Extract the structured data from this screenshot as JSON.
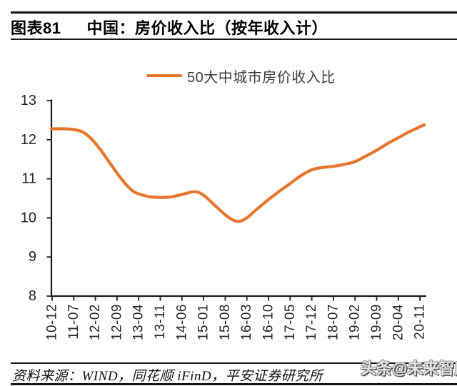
{
  "figure": {
    "id_label": "图表81",
    "title": "中国：房价收入比（按年收入计）"
  },
  "legend": {
    "series_label": "50大中城市房价收入比"
  },
  "chart_data": {
    "type": "line",
    "title": "中国：房价收入比（按年收入计）",
    "legend_position": "top-center",
    "grid": false,
    "ylim": [
      8,
      13
    ],
    "y_ticks": [
      13,
      12,
      11,
      10,
      9,
      8
    ],
    "x_labels": [
      "10-12",
      "11-07",
      "12-02",
      "12-09",
      "13-04",
      "13-11",
      "14-06",
      "15-01",
      "15-08",
      "16-03",
      "16-10",
      "17-05",
      "17-12",
      "18-07",
      "19-02",
      "19-09",
      "20-04",
      "20-11"
    ],
    "series": [
      {
        "name": "50大中城市房价收入比",
        "color": "#E8762D",
        "values": [
          12.28,
          12.26,
          11.9,
          11.15,
          10.63,
          10.53,
          10.6,
          10.58,
          10.08,
          10.0,
          10.47,
          10.88,
          11.23,
          11.32,
          11.44,
          11.73,
          12.05,
          12.33
        ]
      }
    ],
    "annotations": {
      "minimum": {
        "approx_date": "15-12",
        "value": 9.9
      },
      "start_value": 12.28,
      "end_value": 12.38
    },
    "shape_points": [
      [
        -0.03,
        12.28
      ],
      [
        0.5,
        12.28
      ],
      [
        1.0,
        12.26
      ],
      [
        1.4,
        12.2
      ],
      [
        1.8,
        12.03
      ],
      [
        2.2,
        11.77
      ],
      [
        2.7,
        11.38
      ],
      [
        3.2,
        11.0
      ],
      [
        3.7,
        10.7
      ],
      [
        4.2,
        10.58
      ],
      [
        4.7,
        10.53
      ],
      [
        5.4,
        10.53
      ],
      [
        6.0,
        10.6
      ],
      [
        6.6,
        10.67
      ],
      [
        7.0,
        10.58
      ],
      [
        7.5,
        10.33
      ],
      [
        8.0,
        10.08
      ],
      [
        8.35,
        9.95
      ],
      [
        8.65,
        9.91
      ],
      [
        9.0,
        10.0
      ],
      [
        9.5,
        10.24
      ],
      [
        10.0,
        10.47
      ],
      [
        10.5,
        10.68
      ],
      [
        11.0,
        10.88
      ],
      [
        11.5,
        11.08
      ],
      [
        12.0,
        11.23
      ],
      [
        12.5,
        11.29
      ],
      [
        13.0,
        11.32
      ],
      [
        13.6,
        11.38
      ],
      [
        14.0,
        11.44
      ],
      [
        14.5,
        11.58
      ],
      [
        15.0,
        11.73
      ],
      [
        15.5,
        11.9
      ],
      [
        16.0,
        12.05
      ],
      [
        16.5,
        12.2
      ],
      [
        17.0,
        12.33
      ],
      [
        17.2,
        12.38
      ]
    ]
  },
  "footer": {
    "source": "资料来源：WIND，同花顺 iFinD，平安证券研究所"
  },
  "watermark": "头条@未来智库",
  "colors": {
    "line": "#E8762D",
    "axis": "#1a1a1a",
    "axis_text": "#262626",
    "title_text": "#000000",
    "watermark_text": "#e3e3e3"
  }
}
